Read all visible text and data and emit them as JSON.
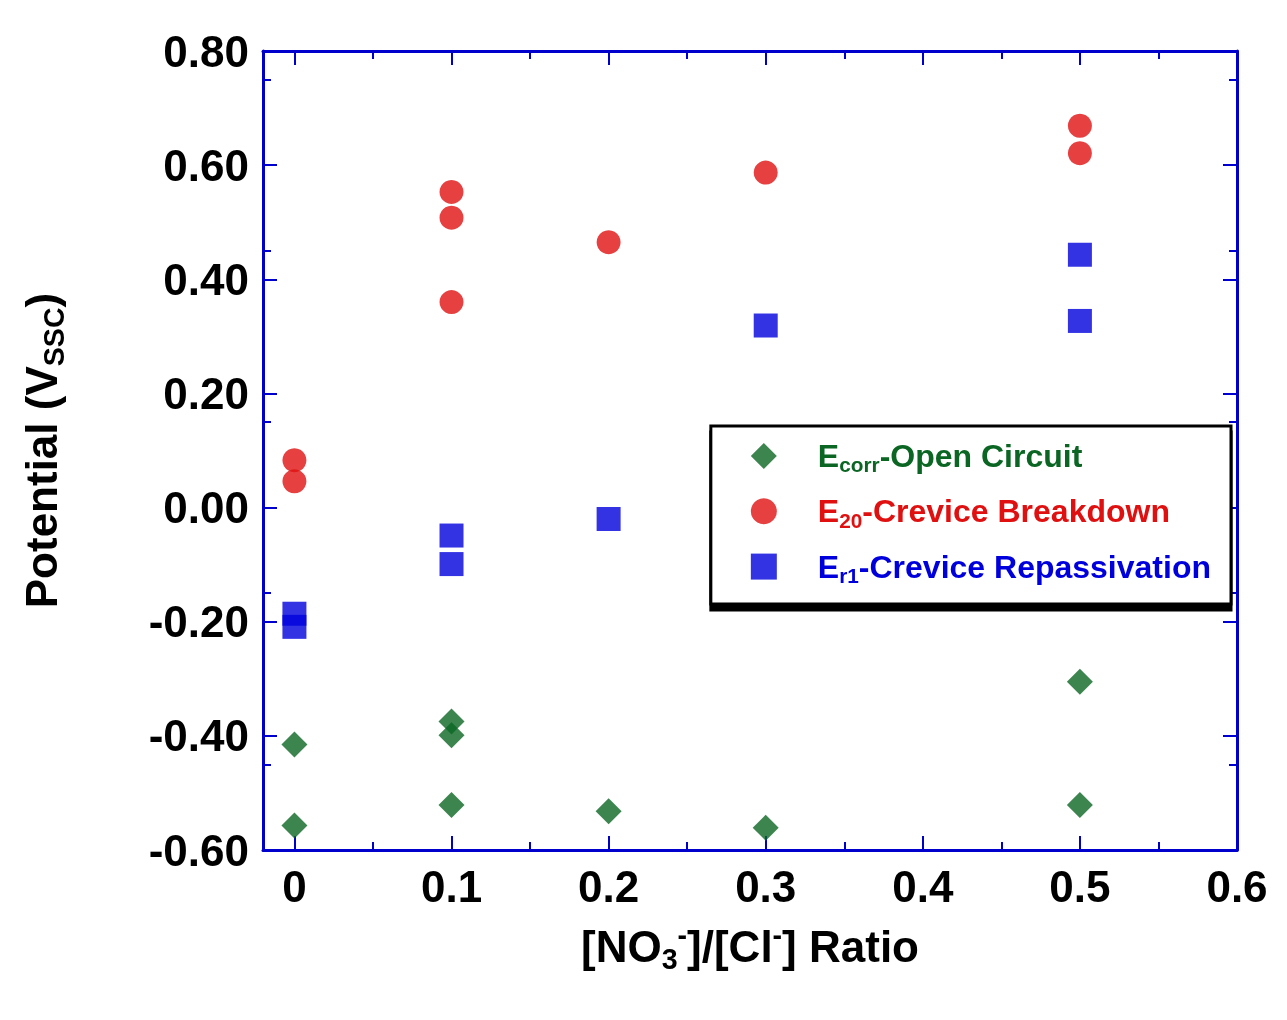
{
  "chart_data": {
    "type": "scatter",
    "xlabel": "[NO$_{3}$$^{-}$]/[Cl$^{-}$] Ratio",
    "ylabel": "Potential (V$_{SSC}$)",
    "xlim": [
      -0.02,
      0.6
    ],
    "xticks": [
      0,
      0.1,
      0.2,
      0.3,
      0.4,
      0.5,
      0.6
    ],
    "ylim": [
      -0.6,
      0.8
    ],
    "yticks": [
      {
        "value": -0.6,
        "label": "-0.60"
      },
      {
        "value": -0.4,
        "label": "-0.40"
      },
      {
        "value": -0.2,
        "label": "-0.20"
      },
      {
        "value": 0,
        "label": "0.00"
      },
      {
        "value": 0.2,
        "label": "0.20"
      },
      {
        "value": 0.4,
        "label": "0.40"
      },
      {
        "value": 0.6,
        "label": "0.60"
      },
      {
        "value": 0.8,
        "label": "0.80"
      }
    ],
    "grid": false,
    "legend": "right",
    "series": [
      {
        "name": "E$_{corr}$-Open Circuit",
        "color": "#0b6623",
        "marker": "diamond",
        "x": [
          0,
          0,
          0.1,
          0.1,
          0.1,
          0.2,
          0.3,
          0.5,
          0.5
        ],
        "values": [
          -0.415,
          -0.557,
          -0.375,
          -0.399,
          -0.521,
          -0.532,
          -0.561,
          -0.305,
          -0.521
        ]
      },
      {
        "name": "E$_{20}$-Crevice Breakdown",
        "color": "#e01010",
        "marker": "circle",
        "x": [
          0,
          0,
          0.1,
          0.1,
          0.1,
          0.2,
          0.3,
          0.5,
          0.5
        ],
        "values": [
          0.083,
          0.046,
          0.553,
          0.508,
          0.36,
          0.465,
          0.587,
          0.669,
          0.621
        ]
      },
      {
        "name": "E$_{r1}$-Crevice Repassivation",
        "color": "#0000dd",
        "marker": "square",
        "x": [
          0,
          0,
          0.1,
          0.1,
          0.2,
          0.3,
          0.5,
          0.5
        ],
        "values": [
          -0.186,
          -0.209,
          -0.049,
          -0.099,
          -0.02,
          0.319,
          0.443,
          0.327
        ]
      }
    ]
  }
}
